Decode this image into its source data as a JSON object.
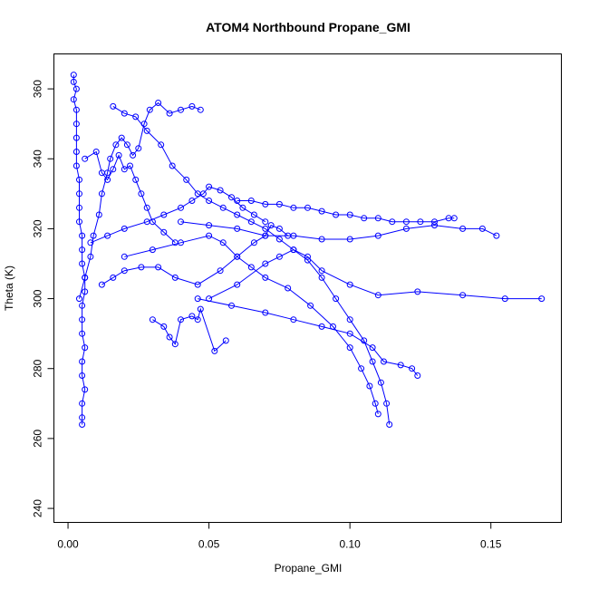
{
  "chart_data": {
    "type": "line",
    "title": "ATOM4 Northbound Propane_GMI",
    "xlabel": "Propane_GMI",
    "ylabel": "Theta (K)",
    "xlim": [
      -0.005,
      0.175
    ],
    "ylim": [
      236,
      370
    ],
    "xticks": [
      {
        "value": 0.0,
        "label": "0.00"
      },
      {
        "value": 0.05,
        "label": "0.05"
      },
      {
        "value": 0.1,
        "label": "0.10"
      },
      {
        "value": 0.15,
        "label": "0.15"
      }
    ],
    "yticks": [
      {
        "value": 240,
        "label": "240"
      },
      {
        "value": 260,
        "label": "260"
      },
      {
        "value": 280,
        "label": "280"
      },
      {
        "value": 300,
        "label": "300"
      },
      {
        "value": 320,
        "label": "320"
      },
      {
        "value": 340,
        "label": "340"
      },
      {
        "value": 360,
        "label": "360"
      }
    ],
    "grid": false,
    "legend": "none",
    "style": {
      "line_color": "#0000ff",
      "marker": "open-circle"
    },
    "series": [
      {
        "points": [
          [
            0.002,
            364
          ],
          [
            0.002,
            362
          ],
          [
            0.003,
            360
          ],
          [
            0.002,
            357
          ],
          [
            0.003,
            354
          ],
          [
            0.003,
            350
          ],
          [
            0.003,
            346
          ],
          [
            0.003,
            342
          ],
          [
            0.003,
            338
          ],
          [
            0.004,
            334
          ],
          [
            0.004,
            330
          ],
          [
            0.004,
            326
          ],
          [
            0.004,
            322
          ],
          [
            0.005,
            318
          ],
          [
            0.005,
            314
          ],
          [
            0.005,
            310
          ],
          [
            0.006,
            306
          ],
          [
            0.006,
            302
          ],
          [
            0.005,
            298
          ],
          [
            0.005,
            294
          ],
          [
            0.005,
            290
          ],
          [
            0.006,
            286
          ],
          [
            0.005,
            282
          ],
          [
            0.005,
            278
          ],
          [
            0.006,
            274
          ],
          [
            0.005,
            270
          ],
          [
            0.005,
            266
          ],
          [
            0.005,
            264
          ]
        ]
      },
      {
        "points": [
          [
            0.004,
            300
          ],
          [
            0.006,
            306
          ],
          [
            0.008,
            312
          ],
          [
            0.009,
            318
          ],
          [
            0.011,
            324
          ],
          [
            0.012,
            330
          ],
          [
            0.014,
            336
          ],
          [
            0.015,
            340
          ],
          [
            0.017,
            344
          ],
          [
            0.019,
            346
          ],
          [
            0.021,
            344
          ],
          [
            0.023,
            341
          ],
          [
            0.025,
            343
          ],
          [
            0.027,
            350
          ],
          [
            0.029,
            354
          ],
          [
            0.032,
            356
          ],
          [
            0.036,
            353
          ],
          [
            0.04,
            354
          ],
          [
            0.044,
            355
          ],
          [
            0.047,
            354
          ]
        ]
      },
      {
        "points": [
          [
            0.016,
            355
          ],
          [
            0.02,
            353
          ],
          [
            0.024,
            352
          ],
          [
            0.028,
            348
          ],
          [
            0.033,
            344
          ],
          [
            0.037,
            338
          ],
          [
            0.042,
            334
          ],
          [
            0.046,
            330
          ],
          [
            0.05,
            328
          ],
          [
            0.055,
            326
          ],
          [
            0.06,
            324
          ],
          [
            0.065,
            322
          ],
          [
            0.07,
            320
          ],
          [
            0.075,
            317
          ],
          [
            0.08,
            314
          ],
          [
            0.085,
            311
          ],
          [
            0.09,
            306
          ],
          [
            0.095,
            300
          ],
          [
            0.1,
            294
          ],
          [
            0.105,
            288
          ],
          [
            0.108,
            282
          ],
          [
            0.111,
            276
          ],
          [
            0.113,
            270
          ],
          [
            0.114,
            264
          ]
        ]
      },
      {
        "points": [
          [
            0.06,
            328
          ],
          [
            0.065,
            328
          ],
          [
            0.07,
            327
          ],
          [
            0.075,
            327
          ],
          [
            0.08,
            326
          ],
          [
            0.085,
            326
          ],
          [
            0.09,
            325
          ],
          [
            0.095,
            324
          ],
          [
            0.1,
            324
          ],
          [
            0.105,
            323
          ],
          [
            0.11,
            323
          ],
          [
            0.115,
            322
          ],
          [
            0.12,
            322
          ],
          [
            0.125,
            322
          ],
          [
            0.13,
            322
          ],
          [
            0.135,
            323
          ],
          [
            0.137,
            323
          ]
        ]
      },
      {
        "points": [
          [
            0.04,
            322
          ],
          [
            0.05,
            321
          ],
          [
            0.06,
            320
          ],
          [
            0.07,
            318
          ],
          [
            0.08,
            318
          ],
          [
            0.09,
            317
          ],
          [
            0.1,
            317
          ],
          [
            0.11,
            318
          ],
          [
            0.12,
            320
          ],
          [
            0.13,
            321
          ],
          [
            0.14,
            320
          ],
          [
            0.147,
            320
          ],
          [
            0.152,
            318
          ]
        ]
      },
      {
        "points": [
          [
            0.05,
            300
          ],
          [
            0.06,
            304
          ],
          [
            0.07,
            310
          ],
          [
            0.075,
            312
          ],
          [
            0.08,
            314
          ],
          [
            0.085,
            312
          ],
          [
            0.09,
            308
          ],
          [
            0.1,
            304
          ],
          [
            0.11,
            301
          ],
          [
            0.124,
            302
          ],
          [
            0.14,
            301
          ],
          [
            0.155,
            300
          ],
          [
            0.168,
            300
          ]
        ]
      },
      {
        "points": [
          [
            0.046,
            300
          ],
          [
            0.058,
            298
          ],
          [
            0.07,
            296
          ],
          [
            0.08,
            294
          ],
          [
            0.09,
            292
          ],
          [
            0.1,
            290
          ],
          [
            0.108,
            286
          ],
          [
            0.112,
            282
          ],
          [
            0.118,
            281
          ],
          [
            0.122,
            280
          ],
          [
            0.124,
            278
          ]
        ]
      },
      {
        "points": [
          [
            0.02,
            312
          ],
          [
            0.03,
            314
          ],
          [
            0.04,
            316
          ],
          [
            0.05,
            318
          ],
          [
            0.055,
            316
          ],
          [
            0.06,
            312
          ],
          [
            0.065,
            309
          ],
          [
            0.07,
            306
          ],
          [
            0.078,
            303
          ],
          [
            0.086,
            298
          ],
          [
            0.094,
            292
          ],
          [
            0.1,
            286
          ],
          [
            0.104,
            280
          ],
          [
            0.107,
            275
          ],
          [
            0.109,
            270
          ],
          [
            0.11,
            267
          ]
        ]
      },
      {
        "points": [
          [
            0.012,
            304
          ],
          [
            0.016,
            306
          ],
          [
            0.02,
            308
          ],
          [
            0.026,
            309
          ],
          [
            0.032,
            309
          ],
          [
            0.038,
            306
          ],
          [
            0.046,
            304
          ],
          [
            0.054,
            308
          ],
          [
            0.06,
            312
          ],
          [
            0.066,
            316
          ],
          [
            0.07,
            318
          ],
          [
            0.072,
            321
          ],
          [
            0.075,
            320
          ],
          [
            0.078,
            318
          ]
        ]
      },
      {
        "points": [
          [
            0.008,
            316
          ],
          [
            0.014,
            318
          ],
          [
            0.02,
            320
          ],
          [
            0.028,
            322
          ],
          [
            0.034,
            324
          ],
          [
            0.04,
            326
          ],
          [
            0.044,
            328
          ],
          [
            0.048,
            330
          ],
          [
            0.05,
            332
          ],
          [
            0.054,
            331
          ],
          [
            0.058,
            329
          ],
          [
            0.062,
            326
          ],
          [
            0.066,
            324
          ],
          [
            0.07,
            322
          ]
        ]
      },
      {
        "points": [
          [
            0.03,
            294
          ],
          [
            0.034,
            292
          ],
          [
            0.036,
            289
          ],
          [
            0.038,
            287
          ],
          [
            0.04,
            294
          ],
          [
            0.044,
            295
          ],
          [
            0.046,
            294
          ],
          [
            0.047,
            297
          ],
          [
            0.052,
            285
          ],
          [
            0.056,
            288
          ]
        ]
      },
      {
        "points": [
          [
            0.006,
            340
          ],
          [
            0.01,
            342
          ],
          [
            0.012,
            336
          ],
          [
            0.014,
            334
          ],
          [
            0.016,
            337
          ],
          [
            0.018,
            341
          ],
          [
            0.02,
            337
          ],
          [
            0.022,
            338
          ],
          [
            0.024,
            334
          ],
          [
            0.026,
            330
          ],
          [
            0.028,
            326
          ],
          [
            0.03,
            322
          ],
          [
            0.034,
            319
          ],
          [
            0.038,
            316
          ]
        ]
      }
    ]
  }
}
